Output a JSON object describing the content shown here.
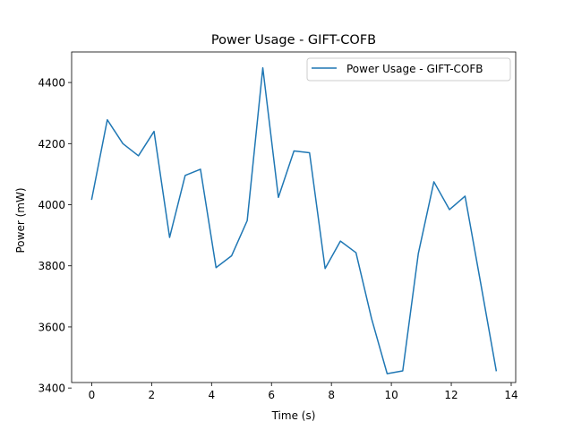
{
  "chart_data": {
    "type": "line",
    "title": "Power Usage - GIFT-COFB",
    "xlabel": "Time (s)",
    "ylabel": "Power (mW)",
    "xlim": [
      -0.67,
      14.15
    ],
    "ylim": [
      3418,
      4500
    ],
    "xticks": [
      0,
      2,
      4,
      6,
      8,
      10,
      12,
      14
    ],
    "yticks": [
      3400,
      3600,
      3800,
      4000,
      4200,
      4400
    ],
    "grid": false,
    "legend_position": "top-right",
    "series": [
      {
        "name": "Power Usage - GIFT-COFB",
        "color": "#1f77b4",
        "x": [
          0.0,
          0.52,
          1.04,
          1.56,
          2.08,
          2.6,
          3.12,
          3.63,
          4.15,
          4.67,
          5.19,
          5.71,
          6.23,
          6.75,
          7.27,
          7.79,
          8.3,
          8.82,
          9.34,
          9.86,
          10.38,
          10.9,
          11.42,
          11.94,
          12.46,
          12.98,
          13.5
        ],
        "y": [
          4018,
          4278,
          4200,
          4160,
          4240,
          3893,
          4096,
          4116,
          3794,
          3833,
          3948,
          4448,
          4024,
          4176,
          4170,
          3791,
          3881,
          3843,
          3627,
          3447,
          3456,
          3840,
          4075,
          3984,
          4028,
          3744,
          3457
        ]
      }
    ]
  }
}
